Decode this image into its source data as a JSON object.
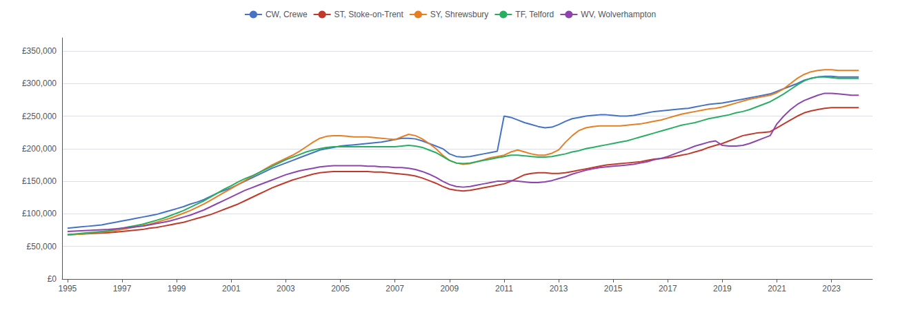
{
  "chart_data": {
    "type": "line",
    "x": [
      1995.0,
      1995.25,
      1995.5,
      1995.75,
      1996.0,
      1996.25,
      1996.5,
      1996.75,
      1997.0,
      1997.25,
      1997.5,
      1997.75,
      1998.0,
      1998.25,
      1998.5,
      1998.75,
      1999.0,
      1999.25,
      1999.5,
      1999.75,
      2000.0,
      2000.25,
      2000.5,
      2000.75,
      2001.0,
      2001.25,
      2001.5,
      2001.75,
      2002.0,
      2002.25,
      2002.5,
      2002.75,
      2003.0,
      2003.25,
      2003.5,
      2003.75,
      2004.0,
      2004.25,
      2004.5,
      2004.75,
      2005.0,
      2005.25,
      2005.5,
      2005.75,
      2006.0,
      2006.25,
      2006.5,
      2006.75,
      2007.0,
      2007.25,
      2007.5,
      2007.75,
      2008.0,
      2008.25,
      2008.5,
      2008.75,
      2009.0,
      2009.25,
      2009.5,
      2009.75,
      2010.0,
      2010.25,
      2010.5,
      2010.75,
      2011.0,
      2011.25,
      2011.5,
      2011.75,
      2012.0,
      2012.25,
      2012.5,
      2012.75,
      2013.0,
      2013.25,
      2013.5,
      2013.75,
      2014.0,
      2014.25,
      2014.5,
      2014.75,
      2015.0,
      2015.25,
      2015.5,
      2015.75,
      2016.0,
      2016.25,
      2016.5,
      2016.75,
      2017.0,
      2017.25,
      2017.5,
      2017.75,
      2018.0,
      2018.25,
      2018.5,
      2018.75,
      2019.0,
      2019.25,
      2019.5,
      2019.75,
      2020.0,
      2020.25,
      2020.5,
      2020.75,
      2021.0,
      2021.25,
      2021.5,
      2021.75,
      2022.0,
      2022.25,
      2022.5,
      2022.75,
      2023.0,
      2023.25,
      2023.5,
      2023.75,
      2024.0
    ],
    "series": [
      {
        "name": "CW, Crewe",
        "color": "#4472c4",
        "values": [
          78000,
          79000,
          80000,
          81000,
          82000,
          83000,
          85000,
          87000,
          89000,
          91000,
          93000,
          95000,
          97000,
          99000,
          102000,
          105000,
          108000,
          111000,
          115000,
          118000,
          122000,
          127000,
          132000,
          136000,
          140000,
          145000,
          150000,
          155000,
          160000,
          165000,
          170000,
          174000,
          178000,
          182000,
          186000,
          190000,
          194000,
          198000,
          200000,
          202000,
          204000,
          205000,
          206000,
          207000,
          208000,
          209000,
          210000,
          212000,
          214000,
          216000,
          216000,
          215000,
          212000,
          208000,
          204000,
          200000,
          192000,
          188000,
          187000,
          188000,
          190000,
          192000,
          194000,
          196000,
          250000,
          248000,
          244000,
          240000,
          237000,
          234000,
          232000,
          233000,
          237000,
          242000,
          246000,
          248000,
          250000,
          251000,
          252000,
          252000,
          251000,
          250000,
          250000,
          251000,
          253000,
          255000,
          257000,
          258000,
          259000,
          260000,
          261000,
          262000,
          264000,
          266000,
          268000,
          269000,
          270000,
          272000,
          274000,
          276000,
          278000,
          280000,
          282000,
          284000,
          288000,
          292000,
          296000,
          300000,
          305000,
          308000,
          310000,
          311000,
          311000,
          310000,
          310000,
          310000,
          310000
        ]
      },
      {
        "name": "ST, Stoke-on-Trent",
        "color": "#c0392b",
        "values": [
          68000,
          68500,
          69000,
          69500,
          70000,
          70500,
          71000,
          72000,
          73000,
          74000,
          75000,
          76000,
          78000,
          79000,
          81000,
          83000,
          85000,
          87000,
          90000,
          93000,
          96000,
          99000,
          103000,
          107000,
          111000,
          115000,
          120000,
          125000,
          130000,
          135000,
          140000,
          144000,
          148000,
          152000,
          155000,
          158000,
          161000,
          163000,
          164000,
          165000,
          165000,
          165000,
          165000,
          165000,
          165000,
          164000,
          164000,
          163000,
          162000,
          161000,
          160000,
          158000,
          155000,
          151000,
          147000,
          142000,
          138000,
          136000,
          135000,
          136000,
          138000,
          140000,
          142000,
          144000,
          146000,
          150000,
          155000,
          160000,
          162000,
          163000,
          163000,
          162000,
          162000,
          163000,
          165000,
          167000,
          169000,
          171000,
          173000,
          175000,
          176000,
          177000,
          178000,
          179000,
          180000,
          182000,
          184000,
          185000,
          186000,
          188000,
          190000,
          192000,
          195000,
          198000,
          202000,
          205000,
          208000,
          212000,
          216000,
          220000,
          222000,
          224000,
          225000,
          226000,
          232000,
          238000,
          244000,
          250000,
          255000,
          258000,
          260000,
          262000,
          263000,
          263000,
          263000,
          263000,
          263000
        ]
      },
      {
        "name": "SY, Shrewsbury",
        "color": "#e67e22",
        "values": [
          68000,
          68500,
          69000,
          70000,
          71000,
          72000,
          73000,
          74000,
          76000,
          78000,
          80000,
          82000,
          84000,
          87000,
          90000,
          93000,
          97000,
          101000,
          105000,
          110000,
          115000,
          121000,
          127000,
          133000,
          139000,
          145000,
          151000,
          157000,
          163000,
          169000,
          175000,
          180000,
          185000,
          190000,
          196000,
          203000,
          210000,
          216000,
          219000,
          220000,
          220000,
          219000,
          218000,
          218000,
          218000,
          217000,
          216000,
          215000,
          214000,
          218000,
          222000,
          220000,
          215000,
          208000,
          200000,
          190000,
          182000,
          178000,
          176000,
          177000,
          180000,
          183000,
          186000,
          188000,
          190000,
          195000,
          198000,
          195000,
          192000,
          190000,
          190000,
          193000,
          198000,
          210000,
          220000,
          228000,
          232000,
          234000,
          235000,
          235000,
          235000,
          235000,
          236000,
          237000,
          238000,
          240000,
          242000,
          244000,
          247000,
          250000,
          253000,
          255000,
          257000,
          259000,
          261000,
          262000,
          264000,
          267000,
          270000,
          273000,
          276000,
          278000,
          280000,
          282000,
          286000,
          292000,
          300000,
          308000,
          314000,
          318000,
          320000,
          321000,
          321000,
          320000,
          320000,
          320000,
          320000
        ]
      },
      {
        "name": "TF, Telford",
        "color": "#27ae60",
        "values": [
          68000,
          69000,
          70000,
          71000,
          72000,
          73000,
          74000,
          76000,
          78000,
          80000,
          82000,
          84000,
          87000,
          90000,
          93000,
          97000,
          101000,
          105000,
          110000,
          115000,
          120000,
          126000,
          132000,
          138000,
          143000,
          149000,
          154000,
          158000,
          163000,
          168000,
          173000,
          178000,
          183000,
          187000,
          191000,
          195000,
          198000,
          200000,
          202000,
          203000,
          203000,
          203000,
          203000,
          203000,
          203000,
          203000,
          203000,
          203000,
          203000,
          204000,
          205000,
          204000,
          202000,
          198000,
          194000,
          188000,
          182000,
          178000,
          177000,
          178000,
          180000,
          182000,
          184000,
          186000,
          188000,
          190000,
          190000,
          189000,
          188000,
          187000,
          187000,
          188000,
          190000,
          192000,
          195000,
          197000,
          200000,
          202000,
          204000,
          206000,
          208000,
          210000,
          212000,
          215000,
          218000,
          221000,
          224000,
          227000,
          230000,
          233000,
          236000,
          238000,
          240000,
          243000,
          246000,
          248000,
          250000,
          252000,
          255000,
          257000,
          260000,
          264000,
          268000,
          272000,
          278000,
          284000,
          291000,
          298000,
          304000,
          308000,
          310000,
          310000,
          309000,
          308000,
          308000,
          308000,
          308000
        ]
      },
      {
        "name": "WV, Wolverhampton",
        "color": "#8e44ad",
        "values": [
          73000,
          73500,
          74000,
          74500,
          75000,
          75500,
          76000,
          77000,
          78000,
          79000,
          80000,
          81000,
          83000,
          85000,
          87000,
          89000,
          92000,
          95000,
          98000,
          102000,
          106000,
          111000,
          116000,
          121000,
          126000,
          131000,
          136000,
          140000,
          144000,
          148000,
          152000,
          156000,
          160000,
          163000,
          166000,
          168000,
          170000,
          172000,
          173000,
          174000,
          174000,
          174000,
          174000,
          174000,
          173000,
          173000,
          172000,
          172000,
          171000,
          171000,
          170000,
          168000,
          165000,
          161000,
          156000,
          150000,
          145000,
          142000,
          141000,
          142000,
          144000,
          146000,
          148000,
          150000,
          150000,
          151000,
          150000,
          149000,
          148000,
          148000,
          149000,
          151000,
          154000,
          157000,
          161000,
          164000,
          167000,
          169000,
          171000,
          172000,
          173000,
          174000,
          175000,
          176000,
          178000,
          180000,
          183000,
          185000,
          188000,
          192000,
          196000,
          200000,
          204000,
          207000,
          210000,
          212000,
          205000,
          204000,
          204000,
          205000,
          208000,
          212000,
          216000,
          220000,
          238000,
          250000,
          260000,
          268000,
          274000,
          278000,
          282000,
          285000,
          285000,
          284000,
          283000,
          282000,
          282000
        ]
      }
    ],
    "xlim": [
      1994.8,
      2024.5
    ],
    "xticks": [
      1995,
      1997,
      1999,
      2001,
      2003,
      2005,
      2007,
      2009,
      2011,
      2013,
      2015,
      2017,
      2019,
      2021,
      2023
    ],
    "ylim": [
      0,
      370000
    ],
    "yticks": [
      {
        "value": 0,
        "label": "£0"
      },
      {
        "value": 50000,
        "label": "£50,000"
      },
      {
        "value": 100000,
        "label": "£100,000"
      },
      {
        "value": 150000,
        "label": "£150,000"
      },
      {
        "value": 200000,
        "label": "£200,000"
      },
      {
        "value": 250000,
        "label": "£250,000"
      },
      {
        "value": 300000,
        "label": "£300,000"
      },
      {
        "value": 350000,
        "label": "£350,000"
      }
    ],
    "grid": true,
    "legend": "top"
  }
}
